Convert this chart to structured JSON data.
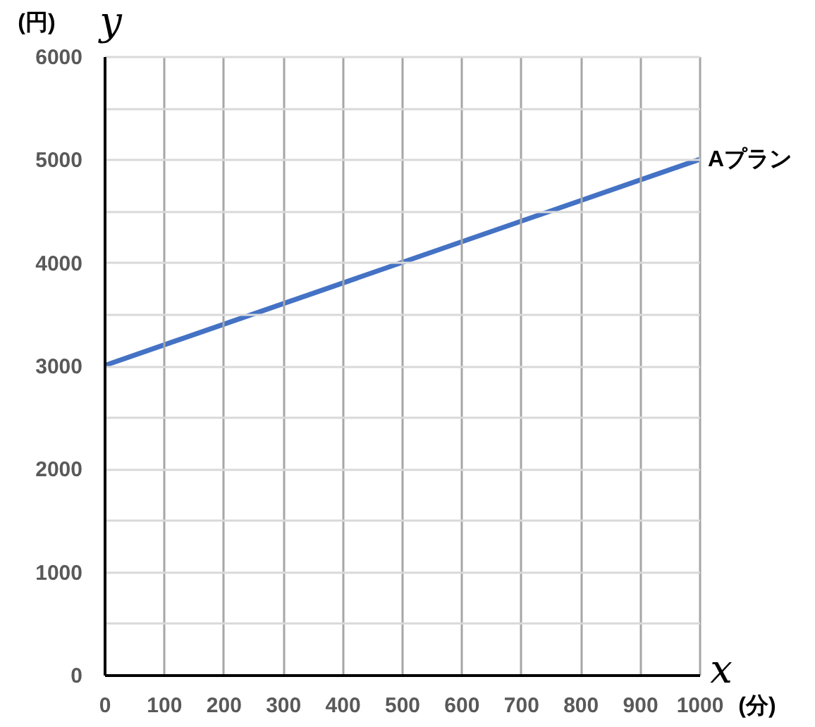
{
  "chart_data": {
    "type": "line",
    "xlabel": "x",
    "ylabel": "y",
    "annotations": [
      "(円)",
      "(分)"
    ],
    "x": [
      0,
      1000
    ],
    "series": [
      {
        "name": "Aプラン",
        "color": "#4472c4",
        "values": [
          3000,
          5000
        ]
      }
    ],
    "xlim": [
      0,
      1000
    ],
    "xticks": [
      0,
      100,
      200,
      300,
      400,
      500,
      600,
      700,
      800,
      900,
      1000
    ],
    "ylim": [
      0,
      6000
    ],
    "yticks": [
      0,
      {
        "value": 500,
        "label": null
      },
      1000,
      {
        "value": 1500,
        "label": null
      },
      2000,
      {
        "value": 2500,
        "label": null
      },
      3000,
      {
        "value": 3500,
        "label": null
      },
      4000,
      {
        "value": 4500,
        "label": null
      },
      5000,
      {
        "value": 5500,
        "label": null
      },
      6000
    ],
    "grid": true
  }
}
